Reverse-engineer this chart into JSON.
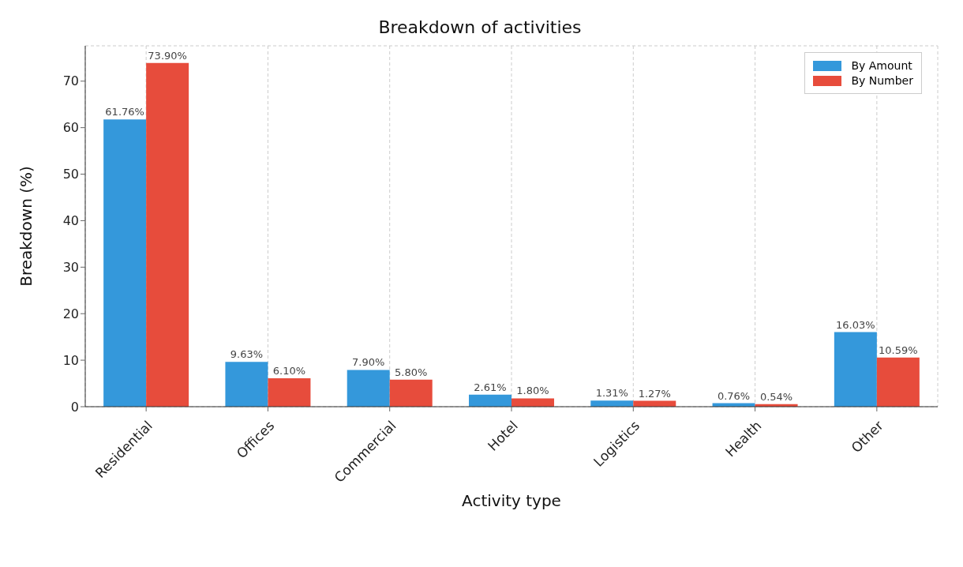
{
  "chart_data": {
    "type": "bar",
    "title": "Breakdown of activities",
    "xlabel": "Activity type",
    "ylabel": "Breakdown (%)",
    "categories": [
      "Residential",
      "Offices",
      "Commercial",
      "Hotel",
      "Logistics",
      "Health",
      "Other"
    ],
    "series": [
      {
        "name": "By Amount",
        "color": "#3498db",
        "values": [
          61.76,
          9.63,
          7.9,
          2.61,
          1.31,
          0.76,
          16.03
        ],
        "value_labels": [
          "61.76%",
          "9.63%",
          "7.90%",
          "2.61%",
          "1.31%",
          "0.76%",
          "16.03%"
        ]
      },
      {
        "name": "By Number",
        "color": "#e74c3c",
        "values": [
          73.9,
          6.1,
          5.8,
          1.8,
          1.27,
          0.54,
          10.59
        ],
        "value_labels": [
          "73.90%",
          "6.10%",
          "5.80%",
          "1.80%",
          "1.27%",
          "0.54%",
          "10.59%"
        ]
      }
    ],
    "ylim": [
      0,
      77.6
    ],
    "yticks": [
      0,
      10,
      20,
      30,
      40,
      50,
      60,
      70
    ],
    "grid": true,
    "legend": "top right"
  }
}
